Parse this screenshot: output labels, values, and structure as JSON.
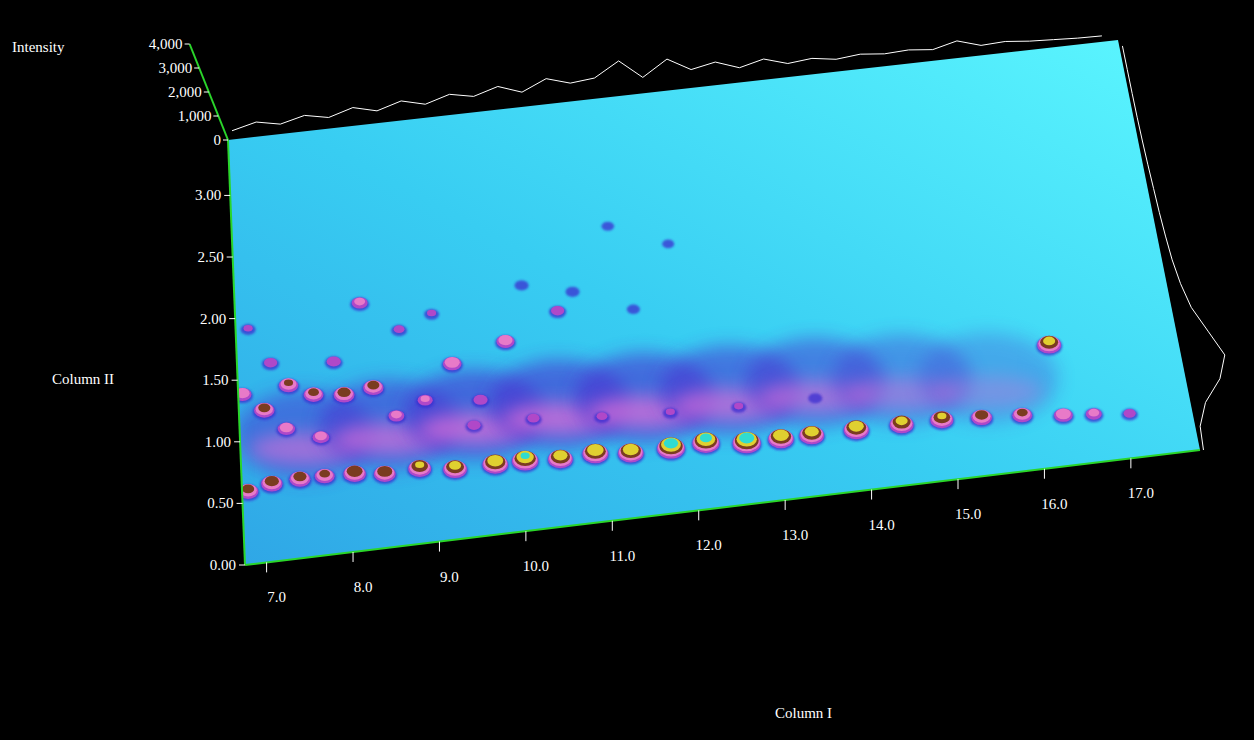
{
  "chart_data": {
    "type": "contour",
    "x_label": "Column I",
    "y_label": "Column II",
    "z_label": "Intensity",
    "xlim": [
      6.75,
      17.8
    ],
    "xticks": [
      {
        "value": 7,
        "label": "7.0"
      },
      {
        "value": 8,
        "label": "8.0"
      },
      {
        "value": 9,
        "label": "9.0"
      },
      {
        "value": 10,
        "label": "10.0"
      },
      {
        "value": 11,
        "label": "11.0"
      },
      {
        "value": 12,
        "label": "12.0"
      },
      {
        "value": 13,
        "label": "13.0"
      },
      {
        "value": 14,
        "label": "14.0"
      },
      {
        "value": 15,
        "label": "15.0"
      },
      {
        "value": 16,
        "label": "16.0"
      },
      {
        "value": 17,
        "label": "17.0"
      }
    ],
    "ylim": [
      0,
      3.45
    ],
    "yticks": [
      {
        "value": 0,
        "label": "0.00"
      },
      {
        "value": 0.5,
        "label": "0.50"
      },
      {
        "value": 1,
        "label": "1.00"
      },
      {
        "value": 1.5,
        "label": "1.50"
      },
      {
        "value": 2,
        "label": "2.00"
      },
      {
        "value": 2.5,
        "label": "2.50"
      },
      {
        "value": 3,
        "label": "3.00"
      }
    ],
    "zlim": [
      0,
      4000
    ],
    "zticks": [
      0,
      {
        "value": 1000,
        "label": "1,000"
      },
      {
        "value": 2000,
        "label": "2,000"
      },
      {
        "value": 3000,
        "label": "3,000"
      },
      {
        "value": 4000,
        "label": "4,000"
      }
    ],
    "peaks": {
      "x": [
        6.82,
        7.1,
        7.43,
        7.72,
        8.07,
        8.42,
        8.83,
        9.24,
        9.71,
        10.06,
        10.47,
        10.88,
        11.29,
        11.76,
        12.17,
        12.64,
        13.04,
        13.4,
        13.92,
        14.45,
        14.92,
        15.38,
        15.85,
        16.32,
        16.67,
        17.08,
        6.8,
        7.05,
        7.35,
        7.64,
        7.3,
        7.7,
        8.0,
        8.35,
        8.6,
        8.95,
        9.3,
        9.6,
        9.95,
        10.6,
        8.25,
        7.9,
        8.7,
        9.1,
        10.2,
        10.8,
        11.5,
        7.15,
        6.9,
        16.3,
        11.0,
        11.8,
        12.6,
        10.2,
        9.5,
        13.5,
        11.3,
        12.0
      ],
      "y": [
        0.58,
        0.62,
        0.63,
        0.63,
        0.62,
        0.59,
        0.6,
        0.56,
        0.56,
        0.56,
        0.54,
        0.55,
        0.52,
        0.52,
        0.53,
        0.49,
        0.49,
        0.49,
        0.49,
        0.49,
        0.49,
        0.47,
        0.45,
        0.41,
        0.39,
        0.36,
        1.37,
        1.22,
        1.4,
        1.3,
        1.05,
        0.95,
        1.27,
        1.3,
        1.05,
        1.15,
        1.42,
        1.1,
        1.55,
        1.75,
        2.0,
        1.55,
        1.75,
        1.85,
        2.0,
        1.9,
        1.7,
        1.6,
        1.9,
        1.0,
        0.85,
        0.82,
        0.8,
        0.9,
        0.9,
        0.8,
        2.4,
        2.2
      ],
      "intensity": [
        1900,
        2100,
        2000,
        1800,
        2300,
        2200,
        2400,
        2600,
        3000,
        3200,
        2800,
        3100,
        3000,
        3600,
        3400,
        3700,
        3000,
        2800,
        2900,
        2600,
        2400,
        2000,
        1800,
        1600,
        1200,
        800,
        1500,
        1900,
        1700,
        1800,
        1400,
        1300,
        2000,
        1900,
        1200,
        1100,
        1600,
        1000,
        1500,
        900,
        1200,
        1000,
        700,
        600,
        500,
        500,
        400,
        900,
        600,
        2600,
        700,
        600,
        600,
        800,
        900,
        500,
        350,
        300
      ]
    },
    "unresolved": {
      "x": [
        7.5,
        8.5,
        9.5,
        10.5,
        11.5,
        12.5,
        13.5,
        14.5,
        15.5
      ],
      "y": [
        0.85,
        0.85,
        0.85,
        0.85,
        0.82,
        0.8,
        0.78,
        0.72,
        0.65
      ],
      "intensity": [
        900,
        1000,
        1100,
        1100,
        1100,
        1000,
        900,
        700,
        500
      ]
    },
    "x_profile": {
      "x": [
        6.8,
        7.1,
        7.4,
        7.7,
        8.0,
        8.3,
        8.6,
        8.9,
        9.2,
        9.5,
        9.8,
        10.1,
        10.4,
        10.7,
        11.0,
        11.3,
        11.6,
        11.9,
        12.2,
        12.5,
        12.8,
        13.1,
        13.4,
        13.7,
        14.0,
        14.3,
        14.6,
        14.9,
        15.2,
        15.5,
        15.8,
        16.1,
        16.4,
        16.7,
        17.0,
        17.3,
        17.6
      ],
      "intensity": [
        200,
        450,
        250,
        500,
        300,
        600,
        350,
        650,
        400,
        700,
        500,
        800,
        450,
        900,
        600,
        700,
        1300,
        500,
        1150,
        600,
        800,
        450,
        700,
        400,
        500,
        350,
        450,
        350,
        400,
        300,
        550,
        250,
        300,
        200,
        150,
        100,
        80
      ]
    },
    "y_profile": {
      "y": [
        0,
        0.2,
        0.4,
        0.6,
        0.8,
        1.0,
        1.2,
        1.4,
        1.6,
        1.8,
        2.0,
        2.2,
        2.4,
        2.6,
        2.8,
        3.0,
        3.2,
        3.4
      ],
      "intensity": [
        20,
        80,
        500,
        1300,
        1700,
        1200,
        700,
        450,
        300,
        220,
        160,
        120,
        80,
        50,
        30,
        20,
        15,
        10
      ]
    }
  }
}
